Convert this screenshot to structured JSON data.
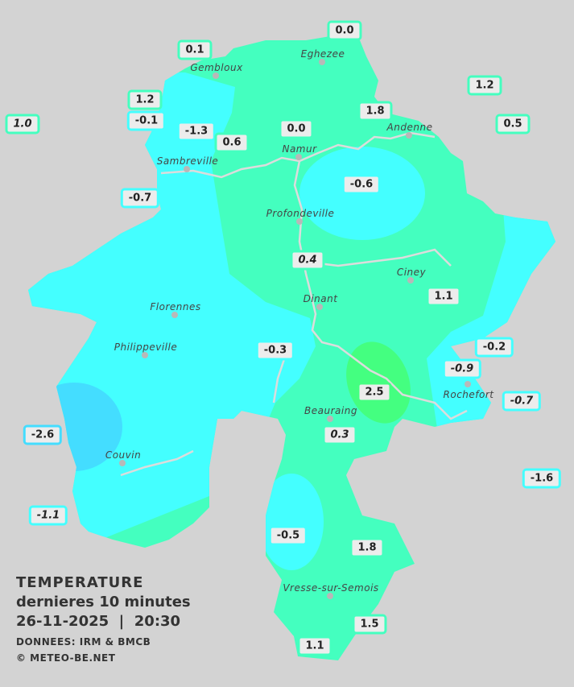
{
  "legend": {
    "title": "TEMPERATURE",
    "subtitle": "dernieres 10 minutes",
    "datetime": "26-11-2025  |  20:30",
    "source": "DONNEES: IRM & BMCB",
    "copyright": "© METEO-BE.NET"
  },
  "colors": {
    "background": "#d3d3d3",
    "band_0_to_2": "#44ffbf",
    "band_minus2_to_0": "#44ffff",
    "band_2_to_4": "#44ff80",
    "band_below_minus2": "#44ddff",
    "river": "#dcdcdc",
    "label_bg": "#ececec"
  },
  "cities": [
    {
      "name": "Eghezee"
    },
    {
      "name": "Gembloux"
    },
    {
      "name": "Andenne"
    },
    {
      "name": "Namur"
    },
    {
      "name": "Sambreville"
    },
    {
      "name": "Profondeville"
    },
    {
      "name": "Ciney"
    },
    {
      "name": "Florennes"
    },
    {
      "name": "Dinant"
    },
    {
      "name": "Philippeville"
    },
    {
      "name": "Rochefort"
    },
    {
      "name": "Beauraing"
    },
    {
      "name": "Couvin"
    },
    {
      "name": "Vresse-sur-Semois"
    }
  ],
  "stations": [
    {
      "value": "0.0",
      "italic": false
    },
    {
      "value": "0.1",
      "italic": false
    },
    {
      "value": "1.2",
      "italic": false
    },
    {
      "value": "1.2",
      "italic": false
    },
    {
      "value": "1.0",
      "italic": true
    },
    {
      "value": "-0.1",
      "italic": false
    },
    {
      "value": "-1.3",
      "italic": false
    },
    {
      "value": "0.0",
      "italic": false
    },
    {
      "value": "1.8",
      "italic": false
    },
    {
      "value": "0.5",
      "italic": false
    },
    {
      "value": "0.6",
      "italic": false
    },
    {
      "value": "-0.6",
      "italic": false
    },
    {
      "value": "-0.7",
      "italic": false
    },
    {
      "value": "0.4",
      "italic": true
    },
    {
      "value": "1.1",
      "italic": false
    },
    {
      "value": "-0.3",
      "italic": false
    },
    {
      "value": "-0.2",
      "italic": false
    },
    {
      "value": "-0.9",
      "italic": true
    },
    {
      "value": "2.5",
      "italic": false
    },
    {
      "value": "-0.7",
      "italic": true
    },
    {
      "value": "0.3",
      "italic": true
    },
    {
      "value": "-2.6",
      "italic": false
    },
    {
      "value": "-1.6",
      "italic": false
    },
    {
      "value": "-1.1",
      "italic": true
    },
    {
      "value": "-0.5",
      "italic": false
    },
    {
      "value": "1.8",
      "italic": false
    },
    {
      "value": "1.5",
      "italic": false
    },
    {
      "value": "1.1",
      "italic": false
    }
  ]
}
